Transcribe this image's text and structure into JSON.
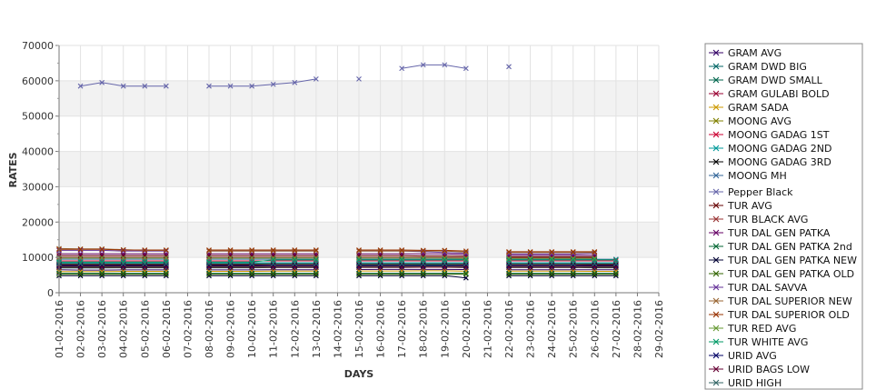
{
  "chart_data": {
    "type": "line",
    "xlabel": "DAYS",
    "ylabel": "RATES",
    "ylim": [
      0,
      70000
    ],
    "y_ticks": [
      "0",
      "10000",
      "20000",
      "30000",
      "40000",
      "50000",
      "60000",
      "70000"
    ],
    "grid": true,
    "legend_position": "right",
    "x": [
      "01-02-2016",
      "02-02-2016",
      "03-02-2016",
      "04-02-2016",
      "05-02-2016",
      "06-02-2016",
      "07-02-2016",
      "08-02-2016",
      "09-02-2016",
      "10-02-2016",
      "11-02-2016",
      "12-02-2016",
      "13-02-2016",
      "14-02-2016",
      "15-02-2016",
      "16-02-2016",
      "17-02-2016",
      "18-02-2016",
      "19-02-2016",
      "20-02-2016",
      "21-02-2016",
      "22-02-2016",
      "23-02-2016",
      "24-02-2016",
      "25-02-2016",
      "26-02-2016",
      "27-02-2016",
      "28-02-2016",
      "29-02-2016"
    ],
    "series": [
      {
        "name": "GRAM AVG",
        "color": "#330066",
        "values": [
          6500,
          6400,
          6400,
          6450,
          6450,
          6450,
          null,
          6450,
          6450,
          6450,
          6500,
          6500,
          6500,
          null,
          6550,
          6600,
          6600,
          6600,
          6600,
          6550,
          null,
          6500,
          6500,
          6500,
          6500,
          6500,
          6500,
          null,
          null
        ]
      },
      {
        "name": "GRAM DWD BIG",
        "color": "#006666",
        "values": [
          7500,
          7500,
          7500,
          7550,
          7550,
          7550,
          null,
          7550,
          7550,
          7550,
          7600,
          7600,
          7600,
          null,
          7650,
          7650,
          7650,
          7700,
          7700,
          7600,
          null,
          7600,
          7600,
          7600,
          7600,
          7550,
          7550,
          null,
          null
        ]
      },
      {
        "name": "GRAM DWD SMALL",
        "color": "#00664d",
        "values": [
          7000,
          7000,
          7000,
          7050,
          7050,
          7050,
          null,
          7050,
          7050,
          7050,
          7100,
          7100,
          7100,
          null,
          7150,
          7150,
          7150,
          7200,
          7200,
          7100,
          null,
          7100,
          7100,
          7100,
          7100,
          7050,
          7050,
          null,
          null
        ]
      },
      {
        "name": "GRAM GULABI BOLD",
        "color": "#990033",
        "values": [
          7800,
          7800,
          7800,
          7850,
          7850,
          7850,
          null,
          7850,
          7850,
          7850,
          7900,
          7900,
          7900,
          null,
          7950,
          7950,
          7950,
          8000,
          8000,
          7900,
          null,
          7900,
          7900,
          7900,
          7900,
          7850,
          7850,
          null,
          null
        ]
      },
      {
        "name": "GRAM SADA",
        "color": "#cc9900",
        "values": [
          6000,
          6000,
          6000,
          6050,
          6050,
          6050,
          null,
          6050,
          6050,
          6050,
          6100,
          6100,
          6100,
          null,
          6150,
          6150,
          6150,
          6200,
          6200,
          6100,
          null,
          6100,
          6100,
          6100,
          6100,
          6050,
          6050,
          null,
          null
        ]
      },
      {
        "name": "MOONG AVG",
        "color": "#808000",
        "values": [
          7300,
          7300,
          7300,
          7300,
          7300,
          7300,
          null,
          7300,
          7300,
          7300,
          7300,
          7300,
          7300,
          null,
          7300,
          7300,
          7300,
          7300,
          7300,
          7300,
          null,
          7300,
          7300,
          7300,
          7300,
          7300,
          7300,
          null,
          null
        ]
      },
      {
        "name": "MOONG GADAG 1ST",
        "color": "#cc0033",
        "values": [
          9000,
          9000,
          9000,
          9000,
          9000,
          9000,
          null,
          9000,
          9000,
          9000,
          9000,
          9000,
          9000,
          null,
          9000,
          9000,
          9000,
          9000,
          9000,
          9000,
          null,
          9000,
          9000,
          9000,
          9000,
          9000,
          9000,
          null,
          null
        ]
      },
      {
        "name": "MOONG GADAG 2ND",
        "color": "#009999",
        "values": [
          8500,
          8500,
          8500,
          8500,
          8500,
          8500,
          null,
          8500,
          8500,
          8500,
          8500,
          8500,
          8500,
          null,
          8500,
          8500,
          8500,
          8500,
          8500,
          8500,
          null,
          8500,
          8500,
          8500,
          8500,
          8500,
          8500,
          null,
          null
        ]
      },
      {
        "name": "MOONG GADAG 3RD",
        "color": "#000000",
        "values": [
          8000,
          8000,
          8000,
          8000,
          8000,
          8000,
          null,
          8000,
          8000,
          8000,
          8000,
          8000,
          8000,
          null,
          8000,
          8000,
          8000,
          8000,
          8000,
          8000,
          null,
          8000,
          8000,
          8000,
          8000,
          8000,
          8000,
          null,
          null
        ]
      },
      {
        "name": "MOONG MH",
        "color": "#336699",
        "values": [
          9500,
          9500,
          9500,
          9500,
          9500,
          9500,
          null,
          9500,
          9500,
          9500,
          9500,
          9500,
          9500,
          null,
          9500,
          9500,
          9500,
          9500,
          9500,
          9500,
          null,
          9500,
          9500,
          9500,
          9500,
          9500,
          9500,
          null,
          null
        ]
      },
      {
        "name": "Pepper Black",
        "color": "#6666aa",
        "values": [
          null,
          58500,
          59500,
          58500,
          58500,
          58500,
          null,
          58500,
          58500,
          58500,
          59000,
          59500,
          60500,
          null,
          60500,
          null,
          63500,
          64500,
          64500,
          63500,
          null,
          64000,
          null,
          null,
          null,
          null,
          null,
          null,
          null
        ]
      },
      {
        "name": "TUR AVG",
        "color": "#660000",
        "values": [
          10500,
          10500,
          10500,
          10500,
          10500,
          10500,
          null,
          10500,
          10500,
          10500,
          10500,
          10500,
          10500,
          null,
          10500,
          10500,
          10500,
          10400,
          10400,
          10300,
          null,
          10200,
          10200,
          10200,
          10200,
          10200,
          null,
          null,
          null
        ]
      },
      {
        "name": "TUR BLACK AVG",
        "color": "#993333",
        "values": [
          10000,
          10000,
          10000,
          10000,
          10000,
          10000,
          null,
          10000,
          10000,
          10000,
          10000,
          10000,
          10000,
          null,
          10000,
          10000,
          10000,
          10000,
          10000,
          10000,
          null,
          9900,
          9900,
          9900,
          9900,
          9900,
          null,
          null,
          null
        ]
      },
      {
        "name": "TUR DAL GEN PATKA",
        "color": "#660066",
        "values": [
          11000,
          11000,
          11000,
          11000,
          11000,
          11000,
          null,
          11000,
          11000,
          11000,
          11000,
          11000,
          11000,
          null,
          11000,
          11000,
          11000,
          11000,
          11000,
          10800,
          null,
          10600,
          10600,
          10600,
          10600,
          10600,
          null,
          null,
          null
        ]
      },
      {
        "name": "TUR DAL GEN PATKA 2nd",
        "color": "#006633",
        "values": [
          5500,
          5500,
          5500,
          5500,
          5500,
          5500,
          null,
          5500,
          5500,
          5500,
          5500,
          5500,
          5500,
          null,
          5500,
          5500,
          5500,
          5500,
          5500,
          5500,
          null,
          5500,
          5500,
          5500,
          5500,
          5500,
          5500,
          null,
          null
        ]
      },
      {
        "name": "TUR DAL GEN PATKA NEW",
        "color": "#000033",
        "values": [
          4800,
          4800,
          4800,
          4800,
          4800,
          4800,
          null,
          4800,
          4800,
          4800,
          4800,
          4800,
          4800,
          null,
          4800,
          4800,
          4800,
          4800,
          4800,
          4200,
          null,
          4800,
          4800,
          4800,
          4800,
          4800,
          4800,
          null,
          null
        ]
      },
      {
        "name": "TUR DAL GEN PATKA OLD",
        "color": "#336600",
        "values": [
          5200,
          5200,
          5200,
          5200,
          5200,
          5200,
          null,
          5200,
          5200,
          5200,
          5200,
          5200,
          5200,
          null,
          5200,
          5200,
          5200,
          5200,
          5200,
          5200,
          null,
          5200,
          5200,
          5200,
          5200,
          5200,
          5200,
          null,
          null
        ]
      },
      {
        "name": "TUR DAL SAVVA",
        "color": "#663399",
        "values": [
          12000,
          12000,
          12000,
          11800,
          11800,
          11800,
          null,
          11800,
          11800,
          11800,
          11800,
          11800,
          11800,
          null,
          11800,
          11800,
          11800,
          11600,
          11400,
          11200,
          null,
          11000,
          11000,
          11000,
          11000,
          11200,
          null,
          null,
          null
        ]
      },
      {
        "name": "TUR DAL SUPERIOR NEW",
        "color": "#996633",
        "values": [
          12500,
          12400,
          12400,
          12200,
          12000,
          12000,
          null,
          11800,
          11800,
          11800,
          11800,
          11800,
          11800,
          null,
          11800,
          11800,
          11800,
          11800,
          11800,
          11500,
          null,
          11400,
          11400,
          11400,
          11400,
          11400,
          null,
          null,
          null
        ]
      },
      {
        "name": "TUR DAL SUPERIOR OLD",
        "color": "#993300",
        "values": [
          12300,
          12300,
          12300,
          12100,
          12100,
          12100,
          null,
          12100,
          12100,
          12100,
          12100,
          12100,
          12100,
          null,
          12100,
          12100,
          12100,
          12000,
          12000,
          11800,
          null,
          11600,
          11600,
          11600,
          11600,
          11600,
          null,
          null,
          null
        ]
      },
      {
        "name": "TUR RED AVG",
        "color": "#669933",
        "values": [
          9800,
          9800,
          9800,
          9800,
          9800,
          9800,
          null,
          9800,
          9800,
          9800,
          9800,
          9800,
          9800,
          null,
          9800,
          9800,
          9800,
          9800,
          9800,
          9700,
          null,
          9700,
          9700,
          9700,
          9700,
          9700,
          null,
          null,
          null
        ]
      },
      {
        "name": "TUR WHITE AVG",
        "color": "#009966",
        "values": [
          8700,
          8700,
          8700,
          8700,
          8700,
          8700,
          null,
          8700,
          8700,
          8700,
          9300,
          9300,
          9300,
          null,
          9300,
          9300,
          9300,
          9300,
          9300,
          9300,
          null,
          9300,
          9300,
          9300,
          9300,
          9300,
          9300,
          null,
          null
        ]
      },
      {
        "name": "URID AVG",
        "color": "#000066",
        "values": [
          7600,
          7600,
          7600,
          7600,
          7600,
          7600,
          null,
          7600,
          7600,
          7600,
          7600,
          7600,
          7600,
          null,
          7600,
          7600,
          7600,
          7600,
          7600,
          7600,
          null,
          7600,
          7600,
          7600,
          7600,
          7600,
          7600,
          null,
          null
        ]
      },
      {
        "name": "URID BAGS LOW",
        "color": "#660033",
        "values": [
          7200,
          7200,
          7200,
          7200,
          7200,
          7200,
          null,
          7200,
          7200,
          7200,
          7200,
          7200,
          7200,
          null,
          7200,
          7200,
          7200,
          7200,
          7200,
          7200,
          null,
          7200,
          7200,
          7200,
          7200,
          7200,
          7200,
          null,
          null
        ]
      },
      {
        "name": "URID HIGH",
        "color": "#336666",
        "values": [
          8200,
          8200,
          8200,
          8200,
          8200,
          8200,
          null,
          8200,
          8200,
          8200,
          8200,
          8200,
          8200,
          null,
          8200,
          8200,
          8200,
          8200,
          8200,
          8200,
          null,
          8200,
          8200,
          8200,
          8200,
          8200,
          8200,
          null,
          null
        ]
      }
    ]
  }
}
